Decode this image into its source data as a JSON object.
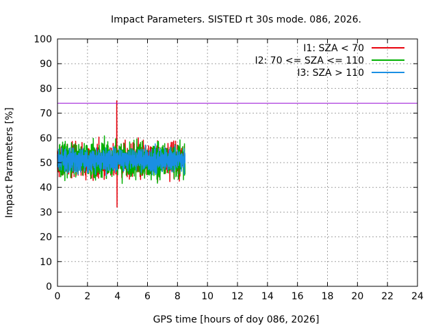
{
  "chart_data": {
    "type": "line",
    "title": "Impact Parameters. SISTED rt 30s mode. 086, 2026.",
    "xlabel": "GPS time [hours of doy 086, 2026]",
    "ylabel": "Impact Parameters [%]",
    "xlim": [
      0,
      24
    ],
    "ylim": [
      0,
      100
    ],
    "xticks": [
      0,
      2,
      4,
      6,
      8,
      10,
      12,
      14,
      16,
      18,
      20,
      22,
      24
    ],
    "yticks": [
      0,
      10,
      20,
      30,
      40,
      50,
      60,
      70,
      80,
      90,
      100
    ],
    "grid": true,
    "legend_position": "top-right",
    "threshold_line": {
      "y": 74,
      "color": "#9400d3"
    },
    "series": [
      {
        "name": "I1: SZA < 70",
        "color": "#e8000b",
        "x_range": [
          0,
          8.5
        ],
        "mean": 51,
        "typical_range": [
          43,
          60
        ],
        "spikes": [
          {
            "x": 3.95,
            "y": 75
          },
          {
            "x": 3.97,
            "y": 32
          }
        ]
      },
      {
        "name": "I2: 70 <= SZA <= 110",
        "color": "#00b000",
        "x_range": [
          0,
          8.5
        ],
        "mean": 51,
        "typical_range": [
          43,
          61
        ],
        "spikes": []
      },
      {
        "name": "I3: SZA > 110",
        "color": "#1a8fe3",
        "x_range": [
          0,
          8.5
        ],
        "mean": 51,
        "typical_range": [
          45,
          57
        ],
        "spikes": []
      }
    ]
  }
}
